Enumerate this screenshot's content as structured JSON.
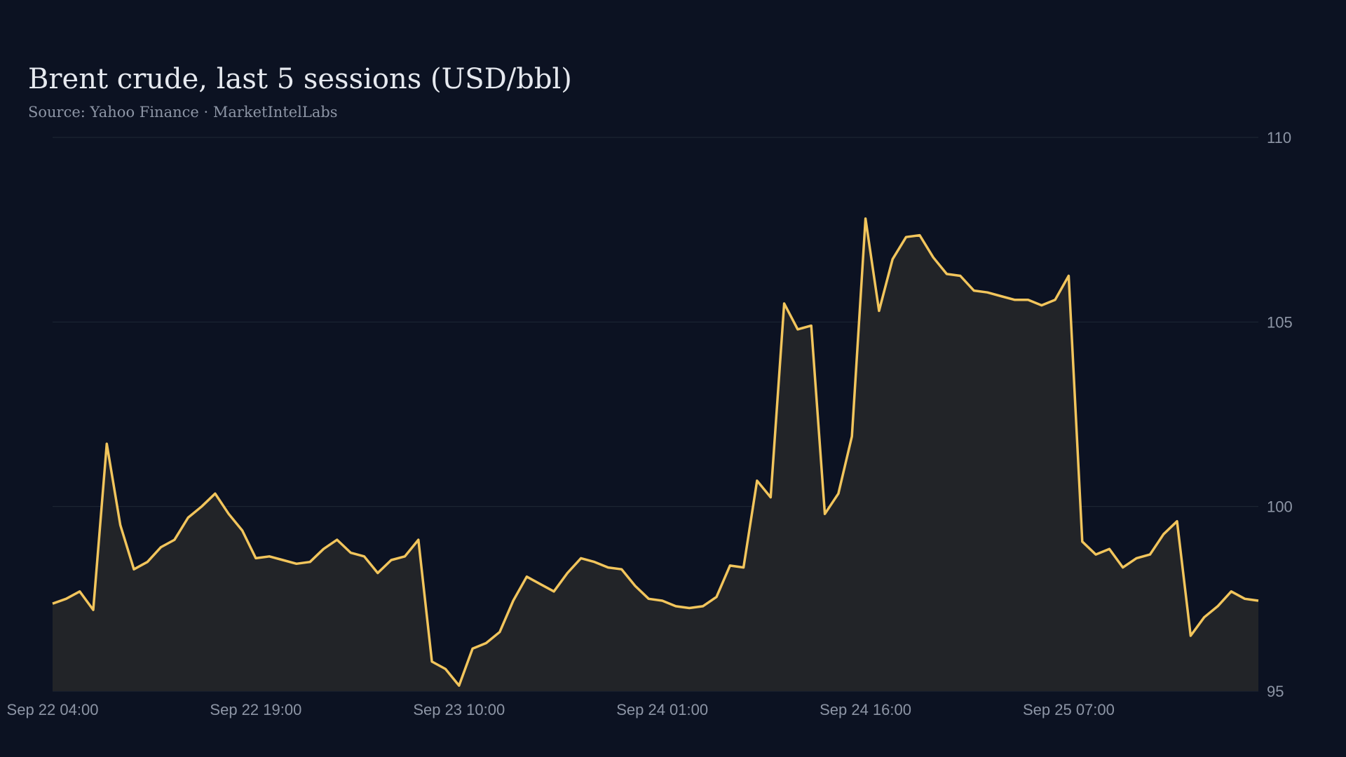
{
  "chart_data": {
    "type": "area",
    "title": "Brent crude, last 5 sessions (USD/bbl)",
    "subtitle": "Source: Yahoo Finance · MarketIntelLabs",
    "x": [
      "Sep 22 04:00",
      "Sep 22 05:00",
      "Sep 22 06:00",
      "Sep 22 07:00",
      "Sep 22 08:00",
      "Sep 22 09:00",
      "Sep 22 10:00",
      "Sep 22 11:00",
      "Sep 22 12:00",
      "Sep 22 13:00",
      "Sep 22 14:00",
      "Sep 22 15:00",
      "Sep 22 16:00",
      "Sep 22 17:00",
      "Sep 22 18:00",
      "Sep 22 19:00",
      "Sep 22 20:00",
      "Sep 22 21:00",
      "Sep 22 22:00",
      "Sep 22 23:00",
      "Sep 23 00:00",
      "Sep 23 01:00",
      "Sep 23 02:00",
      "Sep 23 03:00",
      "Sep 23 04:00",
      "Sep 23 05:00",
      "Sep 23 06:00",
      "Sep 23 07:00",
      "Sep 23 08:00",
      "Sep 23 09:00",
      "Sep 23 10:00",
      "Sep 23 11:00",
      "Sep 23 12:00",
      "Sep 23 13:00",
      "Sep 23 14:00",
      "Sep 23 15:00",
      "Sep 23 16:00",
      "Sep 23 17:00",
      "Sep 23 18:00",
      "Sep 23 19:00",
      "Sep 23 20:00",
      "Sep 23 21:00",
      "Sep 23 22:00",
      "Sep 23 23:00",
      "Sep 24 00:00",
      "Sep 24 01:00",
      "Sep 24 02:00",
      "Sep 24 03:00",
      "Sep 24 04:00",
      "Sep 24 05:00",
      "Sep 24 06:00",
      "Sep 24 07:00",
      "Sep 24 08:00",
      "Sep 24 09:00",
      "Sep 24 10:00",
      "Sep 24 11:00",
      "Sep 24 12:00",
      "Sep 24 13:00",
      "Sep 24 14:00",
      "Sep 24 15:00",
      "Sep 24 16:00",
      "Sep 24 17:00",
      "Sep 24 18:00",
      "Sep 24 19:00",
      "Sep 24 20:00",
      "Sep 24 21:00",
      "Sep 24 22:00",
      "Sep 24 23:00",
      "Sep 25 00:00",
      "Sep 25 01:00",
      "Sep 25 02:00",
      "Sep 25 03:00",
      "Sep 25 04:00",
      "Sep 25 05:00",
      "Sep 25 06:00",
      "Sep 25 07:00",
      "Sep 25 08:00",
      "Sep 25 09:00",
      "Sep 25 10:00",
      "Sep 25 11:00",
      "Sep 25 12:00",
      "Sep 25 13:00",
      "Sep 25 14:00",
      "Sep 25 15:00",
      "Sep 25 16:00",
      "Sep 25 17:00",
      "Sep 25 18:00",
      "Sep 25 19:00",
      "Sep 25 20:00",
      "Sep 25 21:00"
    ],
    "values": [
      97.37,
      97.5,
      97.7,
      97.2,
      101.7,
      99.5,
      98.3,
      98.5,
      98.9,
      99.1,
      99.7,
      100.0,
      100.35,
      99.8,
      99.35,
      98.6,
      98.65,
      98.55,
      98.45,
      98.5,
      98.85,
      99.1,
      98.75,
      98.65,
      98.2,
      98.55,
      98.65,
      99.1,
      95.8,
      95.6,
      95.15,
      96.15,
      96.3,
      96.6,
      97.45,
      98.1,
      97.9,
      97.7,
      98.2,
      98.6,
      98.5,
      98.35,
      98.3,
      97.85,
      97.5,
      97.45,
      97.3,
      97.25,
      97.3,
      97.55,
      98.4,
      98.35,
      100.7,
      100.25,
      105.5,
      104.8,
      104.9,
      99.8,
      100.35,
      101.9,
      107.8,
      105.3,
      106.7,
      107.3,
      107.35,
      106.75,
      106.3,
      106.25,
      105.85,
      105.8,
      105.7,
      105.6,
      105.6,
      105.45,
      105.6,
      106.25,
      99.05,
      98.7,
      98.85,
      98.35,
      98.6,
      98.7,
      99.25,
      99.6,
      96.5,
      97.0,
      97.3,
      97.7,
      97.5,
      97.45
    ],
    "color": "#f2c55c",
    "ylim": [
      95,
      110
    ],
    "yticks": [
      95,
      100,
      105,
      110
    ],
    "xticks": [
      "Sep 22 04:00",
      "Sep 22 19:00",
      "Sep 23 10:00",
      "Sep 24 01:00",
      "Sep 24 16:00",
      "Sep 25 07:00"
    ],
    "grid": true
  }
}
